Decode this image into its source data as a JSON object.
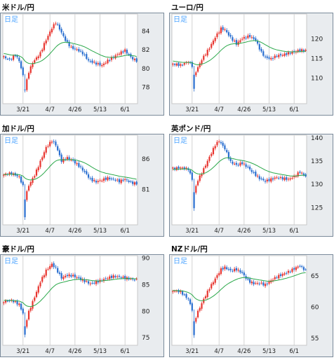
{
  "colors": {
    "frame": "#7a8a9a",
    "plot_bg": "#ffffff",
    "sep_bg": "#e9ecef",
    "grid": "#c8c8c8",
    "up": "#e8352f",
    "down": "#2a6fd0",
    "ma": "#2aa84a",
    "tag": "#4aa3ff",
    "text": "#222222"
  },
  "period_tag": "日足",
  "x_labels": [
    "3/21",
    "4/7",
    "4/26",
    "5/13",
    "6/1"
  ],
  "chart_data": [
    {
      "type": "candlestick",
      "title": "米ドル/円",
      "y_ticks": [
        "84",
        "82",
        "80",
        "78"
      ],
      "ylim": [
        76.2,
        85.8
      ],
      "anchors": [
        [
          0,
          81.2
        ],
        [
          3,
          80.9
        ],
        [
          6,
          81.4
        ],
        [
          8,
          80.8
        ],
        [
          10,
          79.2
        ],
        [
          11,
          77.8
        ],
        [
          13,
          79.6
        ],
        [
          15,
          80.6
        ],
        [
          19,
          81.6
        ],
        [
          21,
          82.6
        ],
        [
          25,
          84.3
        ],
        [
          27,
          84.9
        ],
        [
          29,
          84.2
        ],
        [
          32,
          83.0
        ],
        [
          35,
          82.2
        ],
        [
          38,
          82.0
        ],
        [
          41,
          81.6
        ],
        [
          44,
          80.8
        ],
        [
          48,
          80.5
        ],
        [
          51,
          80.3
        ],
        [
          54,
          80.8
        ],
        [
          57,
          81.2
        ],
        [
          60,
          81.6
        ],
        [
          63,
          81.9
        ],
        [
          65,
          81.4
        ],
        [
          67,
          81.0
        ],
        [
          69,
          80.8
        ]
      ],
      "dips": [
        [
          11,
          77.4
        ]
      ],
      "ma_start": 81.6,
      "ma_period": 12
    },
    {
      "type": "candlestick",
      "title": "ユーロ/円",
      "y_ticks": [
        "120",
        "115",
        "110"
      ],
      "ylim": [
        103.4,
        126.2
      ],
      "anchors": [
        [
          0,
          113.5
        ],
        [
          4,
          113.2
        ],
        [
          8,
          114.1
        ],
        [
          10,
          113.0
        ],
        [
          11,
          110.5
        ],
        [
          13,
          112.6
        ],
        [
          15,
          114.6
        ],
        [
          19,
          117.6
        ],
        [
          22,
          120.3
        ],
        [
          25,
          122.5
        ],
        [
          27,
          122.2
        ],
        [
          30,
          120.2
        ],
        [
          33,
          118.6
        ],
        [
          36,
          120.0
        ],
        [
          40,
          120.6
        ],
        [
          43,
          119.5
        ],
        [
          46,
          116.4
        ],
        [
          48,
          115.2
        ],
        [
          51,
          114.8
        ],
        [
          54,
          115.6
        ],
        [
          57,
          115.8
        ],
        [
          60,
          116.2
        ],
        [
          63,
          116.6
        ],
        [
          66,
          117.0
        ],
        [
          69,
          116.9
        ]
      ],
      "dips": [
        [
          11,
          106.5
        ]
      ],
      "ma_start": 114.3,
      "ma_period": 12
    },
    {
      "type": "candlestick",
      "title": "加ドル/円",
      "y_ticks": [
        "86",
        "81"
      ],
      "ylim": [
        75.2,
        89.8
      ],
      "anchors": [
        [
          0,
          83.4
        ],
        [
          4,
          83.6
        ],
        [
          8,
          83.0
        ],
        [
          10,
          81.5
        ],
        [
          11,
          79.5
        ],
        [
          13,
          81.6
        ],
        [
          16,
          83.3
        ],
        [
          19,
          85.5
        ],
        [
          22,
          87.8
        ],
        [
          25,
          88.9
        ],
        [
          27,
          88.2
        ],
        [
          30,
          85.6
        ],
        [
          33,
          86.1
        ],
        [
          36,
          85.6
        ],
        [
          39,
          84.8
        ],
        [
          42,
          83.8
        ],
        [
          45,
          82.6
        ],
        [
          48,
          82.2
        ],
        [
          51,
          82.5
        ],
        [
          54,
          82.8
        ],
        [
          57,
          82.6
        ],
        [
          60,
          82.3
        ],
        [
          63,
          82.6
        ],
        [
          66,
          82.1
        ],
        [
          69,
          81.9
        ]
      ],
      "dips": [
        [
          11,
          76.0
        ]
      ],
      "ma_start": 83.4,
      "ma_period": 12
    },
    {
      "type": "candlestick",
      "title": "英ポンド/円",
      "y_ticks": [
        "140",
        "135",
        "130",
        "125"
      ],
      "ylim": [
        121.2,
        140.5
      ],
      "anchors": [
        [
          0,
          133.3
        ],
        [
          4,
          133.5
        ],
        [
          8,
          133.2
        ],
        [
          10,
          131.0
        ],
        [
          11,
          128.2
        ],
        [
          13,
          130.8
        ],
        [
          16,
          133.2
        ],
        [
          19,
          135.8
        ],
        [
          22,
          138.4
        ],
        [
          24,
          139.3
        ],
        [
          27,
          137.6
        ],
        [
          30,
          134.7
        ],
        [
          33,
          134.1
        ],
        [
          36,
          134.5
        ],
        [
          39,
          133.5
        ],
        [
          42,
          132.3
        ],
        [
          45,
          131.2
        ],
        [
          48,
          130.6
        ],
        [
          51,
          131.0
        ],
        [
          54,
          131.4
        ],
        [
          57,
          131.2
        ],
        [
          60,
          131.0
        ],
        [
          63,
          131.6
        ],
        [
          66,
          132.6
        ],
        [
          69,
          131.7
        ]
      ],
      "dips": [
        [
          11,
          124.2
        ]
      ],
      "ma_start": 133.1,
      "ma_period": 12
    },
    {
      "type": "candlestick",
      "title": "豪ドル/円",
      "y_ticks": [
        "90",
        "85",
        "80",
        "75"
      ],
      "ylim": [
        73.5,
        90.4
      ],
      "anchors": [
        [
          0,
          81.8
        ],
        [
          4,
          82.0
        ],
        [
          8,
          81.2
        ],
        [
          10,
          79.5
        ],
        [
          11,
          77.0
        ],
        [
          13,
          79.8
        ],
        [
          16,
          82.6
        ],
        [
          19,
          85.5
        ],
        [
          22,
          87.6
        ],
        [
          25,
          88.8
        ],
        [
          27,
          88.0
        ],
        [
          30,
          86.2
        ],
        [
          33,
          86.7
        ],
        [
          36,
          86.6
        ],
        [
          39,
          86.1
        ],
        [
          42,
          85.6
        ],
        [
          45,
          85.1
        ],
        [
          48,
          85.4
        ],
        [
          51,
          85.8
        ],
        [
          54,
          86.2
        ],
        [
          57,
          86.5
        ],
        [
          60,
          86.4
        ],
        [
          63,
          86.2
        ],
        [
          66,
          86.0
        ],
        [
          69,
          85.9
        ]
      ],
      "dips": [
        [
          11,
          75.0
        ]
      ],
      "ma_start": 82.0,
      "ma_period": 12
    },
    {
      "type": "candlestick",
      "title": "NZドル/円",
      "y_ticks": [
        "65",
        "60",
        "55"
      ],
      "ylim": [
        53.8,
        68.2
      ],
      "anchors": [
        [
          0,
          62.6
        ],
        [
          4,
          62.4
        ],
        [
          8,
          61.2
        ],
        [
          10,
          59.5
        ],
        [
          11,
          57.5
        ],
        [
          13,
          59.2
        ],
        [
          16,
          61.2
        ],
        [
          19,
          63.0
        ],
        [
          22,
          64.5
        ],
        [
          25,
          66.0
        ],
        [
          27,
          66.3
        ],
        [
          30,
          65.8
        ],
        [
          33,
          66.0
        ],
        [
          36,
          65.4
        ],
        [
          39,
          64.2
        ],
        [
          42,
          63.7
        ],
        [
          45,
          63.8
        ],
        [
          48,
          63.5
        ],
        [
          51,
          64.2
        ],
        [
          54,
          64.8
        ],
        [
          57,
          65.2
        ],
        [
          60,
          65.6
        ],
        [
          63,
          66.1
        ],
        [
          66,
          66.6
        ],
        [
          69,
          65.8
        ]
      ],
      "dips": [
        [
          11,
          55.0
        ]
      ],
      "ma_start": 62.6,
      "ma_period": 12
    }
  ]
}
